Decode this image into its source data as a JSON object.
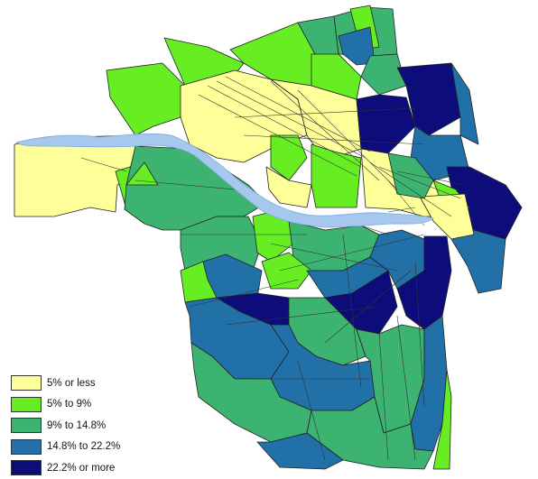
{
  "legend": {
    "items": [
      {
        "label": "5% or less",
        "color": "#ffff99"
      },
      {
        "label": "5% to 9%",
        "color": "#66ee22"
      },
      {
        "label": "9% to 14.8%",
        "color": "#3cb371"
      },
      {
        "label": "14.8% to 22.2%",
        "color": "#2171a8"
      },
      {
        "label": "22.2% or more",
        "color": "#0c0c7a"
      }
    ]
  },
  "river_color": "#a6c8ee"
}
